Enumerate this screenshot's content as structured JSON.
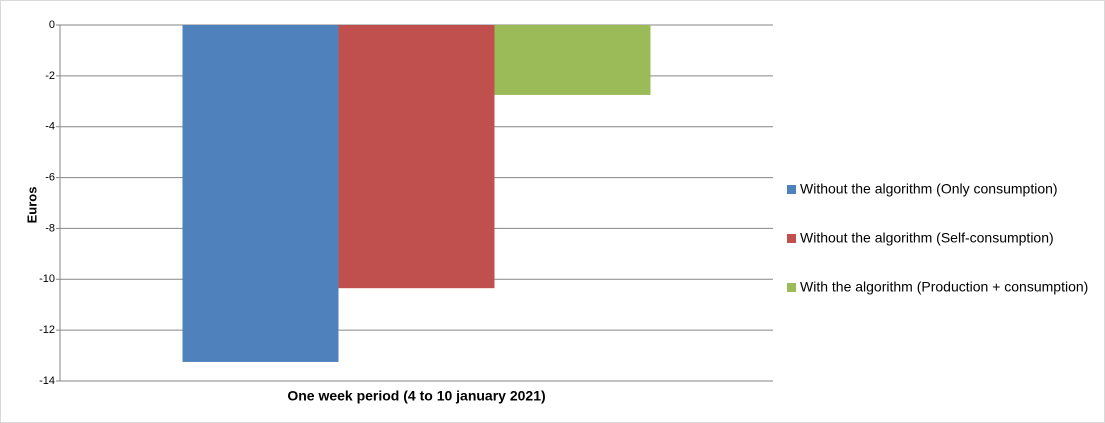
{
  "chart_data": {
    "type": "bar",
    "y_label": "Euros",
    "categories": [
      "One week period (4 to 10 january 2021)"
    ],
    "series": [
      {
        "name": "Without the algorithm (Only consumption)",
        "color": "#4f81bd",
        "values": [
          -13.25
        ]
      },
      {
        "name": "Without the algorithm (Self-consumption)",
        "color": "#c0504d",
        "values": [
          -10.35
        ]
      },
      {
        "name": "With the algorithm (Production + consumption)",
        "color": "#9bbb59",
        "values": [
          -2.75
        ]
      }
    ],
    "ylim": [
      -14,
      0
    ],
    "yticks": [
      0,
      -2,
      -4,
      -6,
      -8,
      -10,
      -12,
      -14
    ],
    "grid": true,
    "legend": "right"
  }
}
